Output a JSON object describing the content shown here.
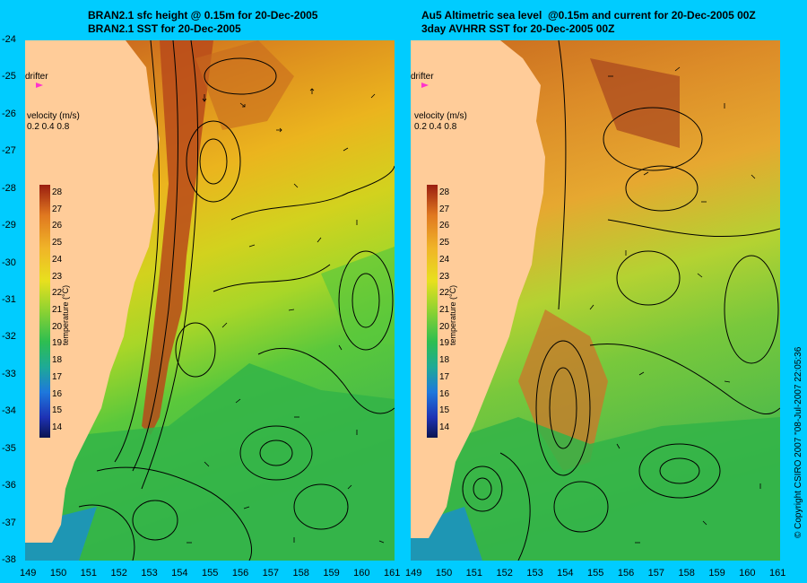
{
  "titles": {
    "left_line1": "BRAN2.1 sfc height @ 0.15m for 20-Dec-2005",
    "left_line2": "BRAN2.1 SST for 20-Dec-2005",
    "right_line1": "Au5 Altimetric sea level  @0.15m and current for 20-Dec-2005 00Z",
    "right_line2": "3day AVHRR SST for 20-Dec-2005 00Z"
  },
  "y_ticks": [
    "-24",
    "-25",
    "-26",
    "-27",
    "-28",
    "-29",
    "-30",
    "-31",
    "-32",
    "-33",
    "-34",
    "-35",
    "-36",
    "-37",
    "-38"
  ],
  "x_ticks_left": [
    "149",
    "150",
    "151",
    "152",
    "153",
    "154",
    "155",
    "156",
    "157",
    "158",
    "159",
    "160",
    "161"
  ],
  "x_ticks_right": [
    "149",
    "150",
    "151",
    "152",
    "153",
    "154",
    "155",
    "156",
    "157",
    "158",
    "159",
    "160",
    "161"
  ],
  "legend": {
    "drifter_label": "drifter",
    "velocity_title": "velocity (m/s)",
    "velocity_scale": "0.2 0.4 0.8",
    "colorbar_values": [
      "28",
      "27",
      "26",
      "25",
      "24",
      "23",
      "22",
      "21",
      "20",
      "19",
      "18",
      "17",
      "16",
      "15",
      "14"
    ],
    "colorbar_unit": "temperature (°C)"
  },
  "copyright": "© Copyright CSIRO 2007 \"08-Jul-2007 22:05:36",
  "colors": {
    "background": "#00ccff",
    "land": "#ffcc99",
    "sst_warm": "#b84a1a",
    "sst_mid": "#e6c81e",
    "sst_cool": "#2ab84a",
    "drifter_marker": "#ff33cc"
  },
  "map_extent": {
    "lon": [
      149,
      161
    ],
    "lat": [
      -38,
      -24
    ]
  }
}
